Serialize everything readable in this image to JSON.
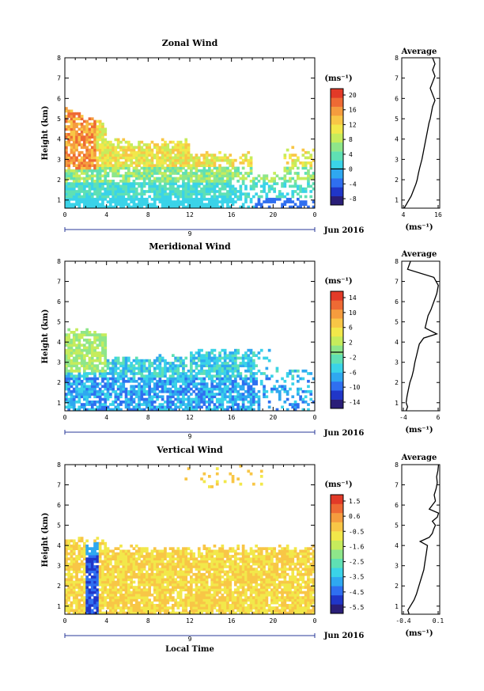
{
  "panels": [
    {
      "title": "Zonal Wind",
      "ylabel": "Height (km)",
      "yticks": [
        "1",
        "2",
        "3",
        "4",
        "5",
        "6",
        "7",
        "8"
      ],
      "xticks": [
        "0",
        "4",
        "8",
        "12",
        "16",
        "20",
        "0"
      ],
      "date_index": "9",
      "date_label": "Jun 2016",
      "cbar_unit": "(ms⁻¹)",
      "cbar_ticks": [
        "20",
        "16",
        "12",
        "8",
        "4",
        "0",
        "-4",
        "-8"
      ],
      "avg_title": "Average",
      "avg_xticks": [
        "4",
        "16"
      ],
      "avg_xlabel": "(ms⁻¹)"
    },
    {
      "title": "Meridional Wind",
      "ylabel": "Height (km)",
      "yticks": [
        "1",
        "2",
        "3",
        "4",
        "5",
        "6",
        "7",
        "8"
      ],
      "xticks": [
        "0",
        "4",
        "8",
        "12",
        "16",
        "20",
        "0"
      ],
      "date_index": "9",
      "date_label": "Jun 2016",
      "cbar_unit": "(ms⁻¹)",
      "cbar_ticks": [
        "14",
        "10",
        "6",
        "2",
        "-2",
        "-6",
        "-10",
        "-14"
      ],
      "avg_title": "Average",
      "avg_xticks": [
        "-4",
        "6"
      ],
      "avg_xlabel": "(ms⁻¹)"
    },
    {
      "title": "Vertical Wind",
      "ylabel": "Height (km)",
      "yticks": [
        "1",
        "2",
        "3",
        "4",
        "5",
        "6",
        "7",
        "8"
      ],
      "xticks": [
        "0",
        "4",
        "8",
        "12",
        "16",
        "20",
        "0"
      ],
      "date_index": "9",
      "date_label": "Jun 2016",
      "cbar_unit": "(ms⁻¹)",
      "cbar_ticks": [
        "1.5",
        "0.6",
        "-0.5",
        "-1.6",
        "-2.5",
        "-3.5",
        "-4.5",
        "-5.5"
      ],
      "avg_title": "Average",
      "avg_xticks": [
        "-0.4",
        "0.1"
      ],
      "avg_xlabel": "(ms⁻¹)",
      "xlabel": "Local Time"
    }
  ],
  "colors": {
    "cbar": [
      "#2a1e78",
      "#2036c8",
      "#2f6ff0",
      "#2fa8f0",
      "#3ad3e8",
      "#5fe0b4",
      "#8ee68a",
      "#c6ec5c",
      "#f2e84a",
      "#f8c646",
      "#f59c3e",
      "#ee6a34",
      "#e23a28"
    ]
  },
  "chart_data": [
    {
      "type": "heatmap",
      "title": "Zonal Wind",
      "xlabel": "",
      "ylabel": "Height (km)",
      "xlim": [
        0,
        24
      ],
      "ylim": [
        0.6,
        8
      ],
      "clim": [
        -8,
        22
      ],
      "colorbar_unit": "ms⁻¹",
      "avg_profile": {
        "xlim": [
          2,
          18
        ],
        "height": [
          0.6,
          0.8,
          1.0,
          1.2,
          1.5,
          1.8,
          2.0,
          2.3,
          2.6,
          3.0,
          3.3,
          3.6,
          3.9,
          4.2,
          4.5,
          4.8,
          5.0,
          5.3,
          5.6,
          5.9,
          6.2,
          6.5,
          6.8,
          7.1,
          7.4,
          7.7,
          8.0
        ],
        "value": [
          3,
          4,
          5,
          6,
          7,
          8,
          8.5,
          9,
          9.6,
          10.5,
          11,
          11.5,
          12,
          12.5,
          13,
          13.5,
          14,
          14.5,
          15,
          16,
          15,
          14,
          15,
          16,
          15,
          16,
          15
        ]
      }
    },
    {
      "type": "heatmap",
      "title": "Meridional Wind",
      "xlabel": "",
      "ylabel": "Height (km)",
      "xlim": [
        0,
        24
      ],
      "ylim": [
        0.6,
        8
      ],
      "clim": [
        -16,
        16
      ],
      "colorbar_unit": "ms⁻¹",
      "avg_profile": {
        "xlim": [
          -6,
          7
        ],
        "height": [
          0.6,
          0.8,
          1.0,
          1.3,
          1.6,
          2.0,
          2.3,
          2.6,
          3.0,
          3.3,
          3.6,
          3.9,
          4.2,
          4.4,
          4.7,
          5.0,
          5.3,
          5.6,
          6.0,
          6.4,
          6.8,
          7.2,
          7.6,
          8.0
        ],
        "value": [
          -4.5,
          -4.0,
          -4.5,
          -4.2,
          -3.8,
          -3.2,
          -2.5,
          -2.0,
          -1.5,
          -1.0,
          -0.5,
          0,
          1.5,
          6,
          2,
          2.5,
          3,
          4,
          5,
          6,
          6.5,
          5,
          -4,
          -3
        ]
      }
    },
    {
      "type": "heatmap",
      "title": "Vertical Wind",
      "xlabel": "Local Time",
      "ylabel": "Height (km)",
      "xlim": [
        0,
        24
      ],
      "ylim": [
        0.6,
        8
      ],
      "clim": [
        -6,
        2
      ],
      "colorbar_unit": "ms⁻¹",
      "avg_profile": {
        "xlim": [
          -0.5,
          0.12
        ],
        "height": [
          0.6,
          0.8,
          1.0,
          1.3,
          1.6,
          2.0,
          2.4,
          2.8,
          3.2,
          3.6,
          4.0,
          4.2,
          4.4,
          4.6,
          4.8,
          5.0,
          5.2,
          5.4,
          5.6,
          5.8,
          6.0,
          6.2,
          6.5,
          6.8,
          7.1,
          7.4,
          7.7,
          8.0
        ],
        "value": [
          -0.38,
          -0.4,
          -0.36,
          -0.3,
          -0.26,
          -0.22,
          -0.18,
          -0.14,
          -0.12,
          -0.1,
          -0.08,
          -0.2,
          -0.05,
          0.0,
          0.02,
          0.05,
          0.0,
          0.08,
          0.1,
          -0.05,
          0.0,
          0.05,
          0.03,
          0.06,
          0.08,
          0.07,
          0.09,
          0.1
        ]
      }
    }
  ]
}
